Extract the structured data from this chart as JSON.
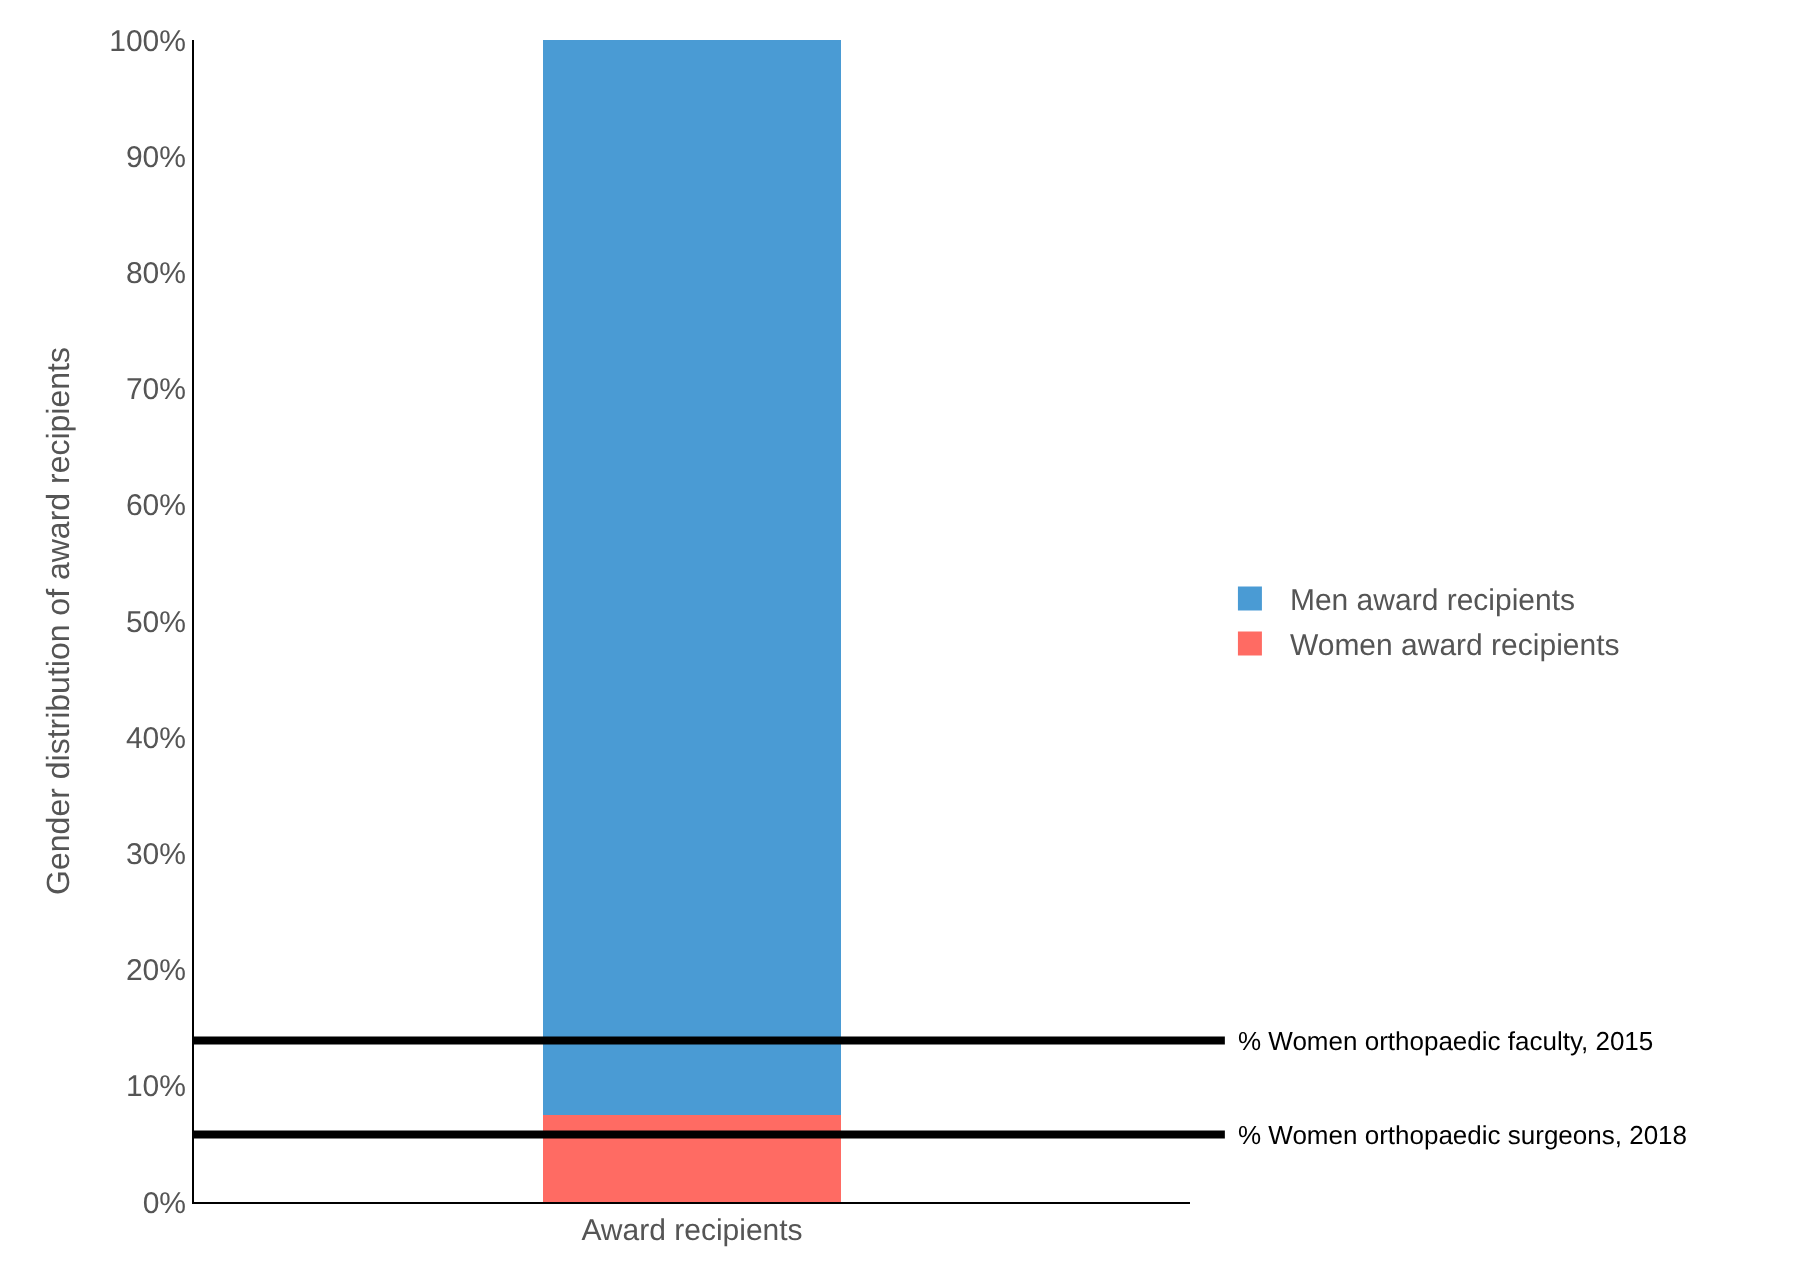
{
  "chart_data": {
    "type": "bar",
    "stacked": true,
    "ylabel": "Gender distribution of award recipients",
    "categories": [
      "Award recipients"
    ],
    "series": [
      {
        "name": "Women award recipients",
        "color": "#ff6b63",
        "values": [
          7.5
        ]
      },
      {
        "name": "Men award recipients",
        "color": "#4a9bd4",
        "values": [
          92.5
        ]
      }
    ],
    "ylim": [
      0,
      100
    ],
    "yticks": [
      {
        "value": 0,
        "label": "0%"
      },
      {
        "value": 10,
        "label": "10%"
      },
      {
        "value": 20,
        "label": "20%"
      },
      {
        "value": 30,
        "label": "30%"
      },
      {
        "value": 40,
        "label": "40%"
      },
      {
        "value": 50,
        "label": "50%"
      },
      {
        "value": 60,
        "label": "60%"
      },
      {
        "value": 70,
        "label": "70%"
      },
      {
        "value": 80,
        "label": "80%"
      },
      {
        "value": 90,
        "label": "90%"
      },
      {
        "value": 100,
        "label": "100%"
      }
    ],
    "ref_lines": [
      {
        "axis": "y",
        "value": 13.9,
        "label": "% Women orthopaedic faculty, 2015",
        "color": "#000000",
        "line_style": "solid"
      },
      {
        "axis": "y",
        "value": 5.8,
        "label": "% Women orthopaedic surgeons, 2018",
        "color": "#000000",
        "line_style": "solid"
      }
    ],
    "legend": "right"
  }
}
